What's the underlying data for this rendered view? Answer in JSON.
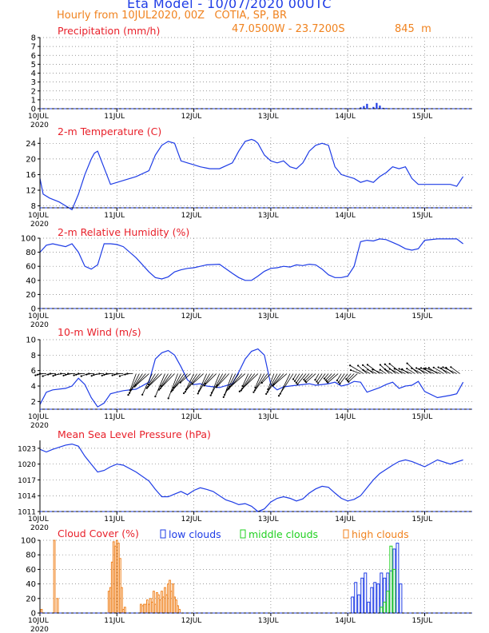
{
  "header": {
    "title": "Eta Model - 10/07/2020 00UTC",
    "subtitle": "Hourly from 10JUL2020, 00Z   COTIA, SP, BR",
    "coords": "47.0500W - 23.7200S",
    "elevation": "845  m"
  },
  "colors": {
    "title": "#1e3ce6",
    "subtitle": "#f0821e",
    "panel_title": "#e8202a",
    "line": "#1e3ce6",
    "low": "#1e3ce6",
    "middle": "#20d020",
    "high": "#f0821e",
    "axis": "#000000",
    "grid": "#7a7a7a"
  },
  "x_axis": {
    "tick_labels": [
      "10JUL",
      "11JUL",
      "12JUL",
      "13JUL",
      "14JUL",
      "15JUL"
    ],
    "year_label": "2020",
    "hours_range": [
      0,
      132
    ]
  },
  "chart_data": [
    {
      "id": "precip",
      "type": "bar",
      "title": "Precipitation (mm/h)",
      "ylim": [
        0,
        8
      ],
      "yticks": [
        0,
        1,
        2,
        3,
        4,
        5,
        6,
        7,
        8
      ],
      "x": [
        100,
        101,
        102,
        104,
        105,
        106,
        107,
        108,
        110,
        112,
        114
      ],
      "values": [
        0.15,
        0.3,
        0.55,
        0.2,
        0.65,
        0.35,
        0.1,
        0.08,
        0.05,
        0.05,
        0.03
      ]
    },
    {
      "id": "temp",
      "type": "line",
      "title": "2-m Temperature (C)",
      "ylim": [
        7.5,
        25.5
      ],
      "yticks": [
        8,
        12,
        16,
        20,
        24
      ],
      "x": [
        0,
        1,
        3,
        6,
        10,
        12,
        14,
        16,
        17,
        18,
        22,
        26,
        30,
        34,
        36,
        38,
        40,
        42,
        44,
        46,
        48,
        50,
        53,
        56,
        60,
        62,
        64,
        66,
        67,
        68,
        70,
        72,
        74,
        76,
        78,
        80,
        82,
        84,
        86,
        88,
        90,
        92,
        94,
        96,
        98,
        100,
        102,
        104,
        106,
        108,
        110,
        112,
        114,
        116,
        118,
        120,
        124,
        128,
        130,
        132
      ],
      "values": [
        15,
        11,
        10,
        9,
        7,
        11,
        16,
        20,
        21.5,
        22,
        13.5,
        14.5,
        15.5,
        17,
        21,
        23.5,
        24.5,
        24,
        19.5,
        19,
        18.5,
        18,
        17.5,
        17.5,
        19,
        22,
        24.5,
        25,
        24.7,
        24,
        21,
        19.5,
        19,
        19.5,
        18,
        17.5,
        19,
        22,
        23.5,
        24,
        23.5,
        18,
        16,
        15.5,
        15,
        14,
        14.5,
        14,
        15.5,
        16.5,
        18,
        17.5,
        18,
        15,
        13.5,
        13.5,
        13.5,
        13.5,
        13,
        15.5
      ]
    },
    {
      "id": "rh",
      "type": "line",
      "title": "2-m Relative Humidity (%)",
      "ylim": [
        0,
        100
      ],
      "yticks": [
        0,
        20,
        40,
        60,
        80,
        100
      ],
      "x": [
        0,
        2,
        4,
        8,
        10,
        12,
        14,
        16,
        18,
        20,
        22,
        24,
        26,
        30,
        34,
        36,
        38,
        40,
        42,
        44,
        46,
        48,
        50,
        52,
        56,
        60,
        62,
        64,
        66,
        68,
        70,
        72,
        74,
        76,
        78,
        80,
        82,
        84,
        86,
        88,
        90,
        92,
        94,
        96,
        98,
        100,
        102,
        104,
        106,
        108,
        110,
        112,
        114,
        116,
        118,
        120,
        124,
        128,
        130,
        132
      ],
      "values": [
        80,
        90,
        92,
        88,
        92,
        80,
        60,
        56,
        62,
        92,
        92,
        91,
        88,
        72,
        52,
        44,
        42,
        45,
        52,
        55,
        57,
        58,
        60,
        62,
        63,
        50,
        44,
        40,
        40,
        46,
        53,
        57,
        58,
        60,
        59,
        62,
        61,
        63,
        62,
        56,
        48,
        44,
        44,
        46,
        60,
        95,
        97,
        96,
        99,
        98,
        94,
        90,
        85,
        83,
        85,
        97,
        99,
        99,
        99,
        92
      ]
    },
    {
      "id": "wind",
      "type": "line",
      "title": "10-m Wind (m/s)",
      "ylim": [
        1,
        10
      ],
      "yticks": [
        2,
        4,
        6,
        8,
        10
      ],
      "x": [
        0,
        2,
        4,
        8,
        10,
        12,
        14,
        16,
        18,
        20,
        22,
        24,
        26,
        30,
        34,
        36,
        38,
        40,
        42,
        44,
        46,
        48,
        50,
        52,
        56,
        60,
        62,
        64,
        66,
        68,
        70,
        72,
        74,
        76,
        78,
        80,
        82,
        84,
        86,
        88,
        90,
        92,
        94,
        96,
        98,
        100,
        102,
        104,
        106,
        108,
        110,
        112,
        114,
        116,
        118,
        120,
        124,
        128,
        130,
        132
      ],
      "values": [
        1.6,
        3.2,
        3.5,
        3.7,
        4.0,
        5.0,
        4.2,
        2.5,
        1.3,
        1.8,
        3.0,
        3.2,
        3.4,
        3.6,
        4.5,
        7.5,
        8.3,
        8.6,
        8.0,
        6.5,
        4.8,
        4.2,
        4.3,
        4.0,
        3.8,
        4.3,
        5.8,
        7.5,
        8.5,
        8.8,
        8.0,
        4.2,
        3.5,
        3.9,
        4.0,
        4.1,
        4.2,
        4.3,
        4.1,
        4.2,
        4.3,
        4.5,
        4.0,
        4.2,
        4.6,
        4.5,
        3.2,
        3.5,
        3.8,
        4.2,
        4.5,
        3.7,
        4.0,
        4.1,
        4.6,
        3.3,
        2.5,
        2.8,
        3.0,
        4.5
      ]
    },
    {
      "id": "mslp",
      "type": "line",
      "title": "Mean Sea Level Pressure (hPa)",
      "ylim": [
        1011,
        1024.5
      ],
      "yticks": [
        1011,
        1014,
        1017,
        1020,
        1023
      ],
      "x": [
        0,
        2,
        4,
        6,
        8,
        10,
        12,
        14,
        16,
        18,
        20,
        22,
        24,
        26,
        30,
        34,
        36,
        38,
        40,
        42,
        44,
        46,
        48,
        50,
        52,
        54,
        56,
        58,
        60,
        62,
        64,
        66,
        68,
        70,
        72,
        74,
        76,
        78,
        80,
        82,
        84,
        86,
        88,
        90,
        92,
        94,
        96,
        98,
        100,
        102,
        104,
        106,
        108,
        110,
        112,
        114,
        116,
        118,
        120,
        124,
        128,
        130,
        132
      ],
      "values": [
        1022.8,
        1022.3,
        1022.8,
        1023.2,
        1023.6,
        1023.8,
        1023.4,
        1021.5,
        1020.0,
        1018.5,
        1018.8,
        1019.5,
        1020.0,
        1019.8,
        1018.5,
        1016.8,
        1015.2,
        1013.8,
        1013.8,
        1014.3,
        1014.8,
        1014.2,
        1015.0,
        1015.5,
        1015.2,
        1014.8,
        1014.0,
        1013.2,
        1012.8,
        1012.3,
        1012.5,
        1012.0,
        1011.0,
        1011.5,
        1012.8,
        1013.5,
        1013.8,
        1013.5,
        1013.0,
        1013.4,
        1014.5,
        1015.3,
        1015.8,
        1015.6,
        1014.5,
        1013.5,
        1013.0,
        1013.3,
        1014.0,
        1015.5,
        1017.0,
        1018.2,
        1019.0,
        1019.8,
        1020.5,
        1020.8,
        1020.5,
        1020.0,
        1019.5,
        1020.8,
        1020.0,
        1020.4,
        1020.8
      ]
    },
    {
      "id": "cloud",
      "type": "bar",
      "title": "Cloud Cover (%)",
      "ylim": [
        0,
        100
      ],
      "yticks": [
        0,
        20,
        40,
        60,
        80,
        100
      ],
      "legend": [
        "low clouds",
        "middle clouds",
        "high clouds"
      ],
      "series": [
        {
          "name": "high clouds",
          "x": [
            0.5,
            4.5,
            5.5,
            21.5,
            22,
            22.5,
            23,
            23.5,
            24,
            24.5,
            25,
            25.5,
            26,
            26.5,
            31.5,
            32,
            32.5,
            33,
            33.5,
            34,
            34.5,
            35,
            35.5,
            36,
            36.5,
            37,
            37.5,
            38,
            38.5,
            39,
            39.5,
            40,
            40.5,
            41,
            41.5,
            42,
            42.5,
            43,
            43.5
          ],
          "values": [
            5,
            100,
            20,
            30,
            35,
            70,
            98,
            92,
            100,
            96,
            75,
            35,
            5,
            8,
            12,
            10,
            12,
            12,
            18,
            12,
            20,
            15,
            30,
            12,
            28,
            25,
            18,
            30,
            22,
            35,
            25,
            40,
            45,
            30,
            40,
            22,
            18,
            10,
            5
          ]
        },
        {
          "name": "low clouds",
          "x": [
            97.5,
            98.5,
            99.5,
            100.5,
            101.5,
            102.5,
            103.5,
            104.5,
            105.5,
            106.5,
            107.5,
            108.5,
            109.5,
            110.5,
            111.5,
            112.5
          ],
          "values": [
            22,
            42,
            25,
            48,
            55,
            15,
            35,
            42,
            40,
            55,
            48,
            55,
            58,
            88,
            96,
            40
          ]
        },
        {
          "name": "middle clouds",
          "x": [
            106.5,
            107.5,
            108.5,
            109.5,
            110.5
          ],
          "values": [
            8,
            15,
            30,
            92,
            60
          ]
        }
      ]
    }
  ]
}
